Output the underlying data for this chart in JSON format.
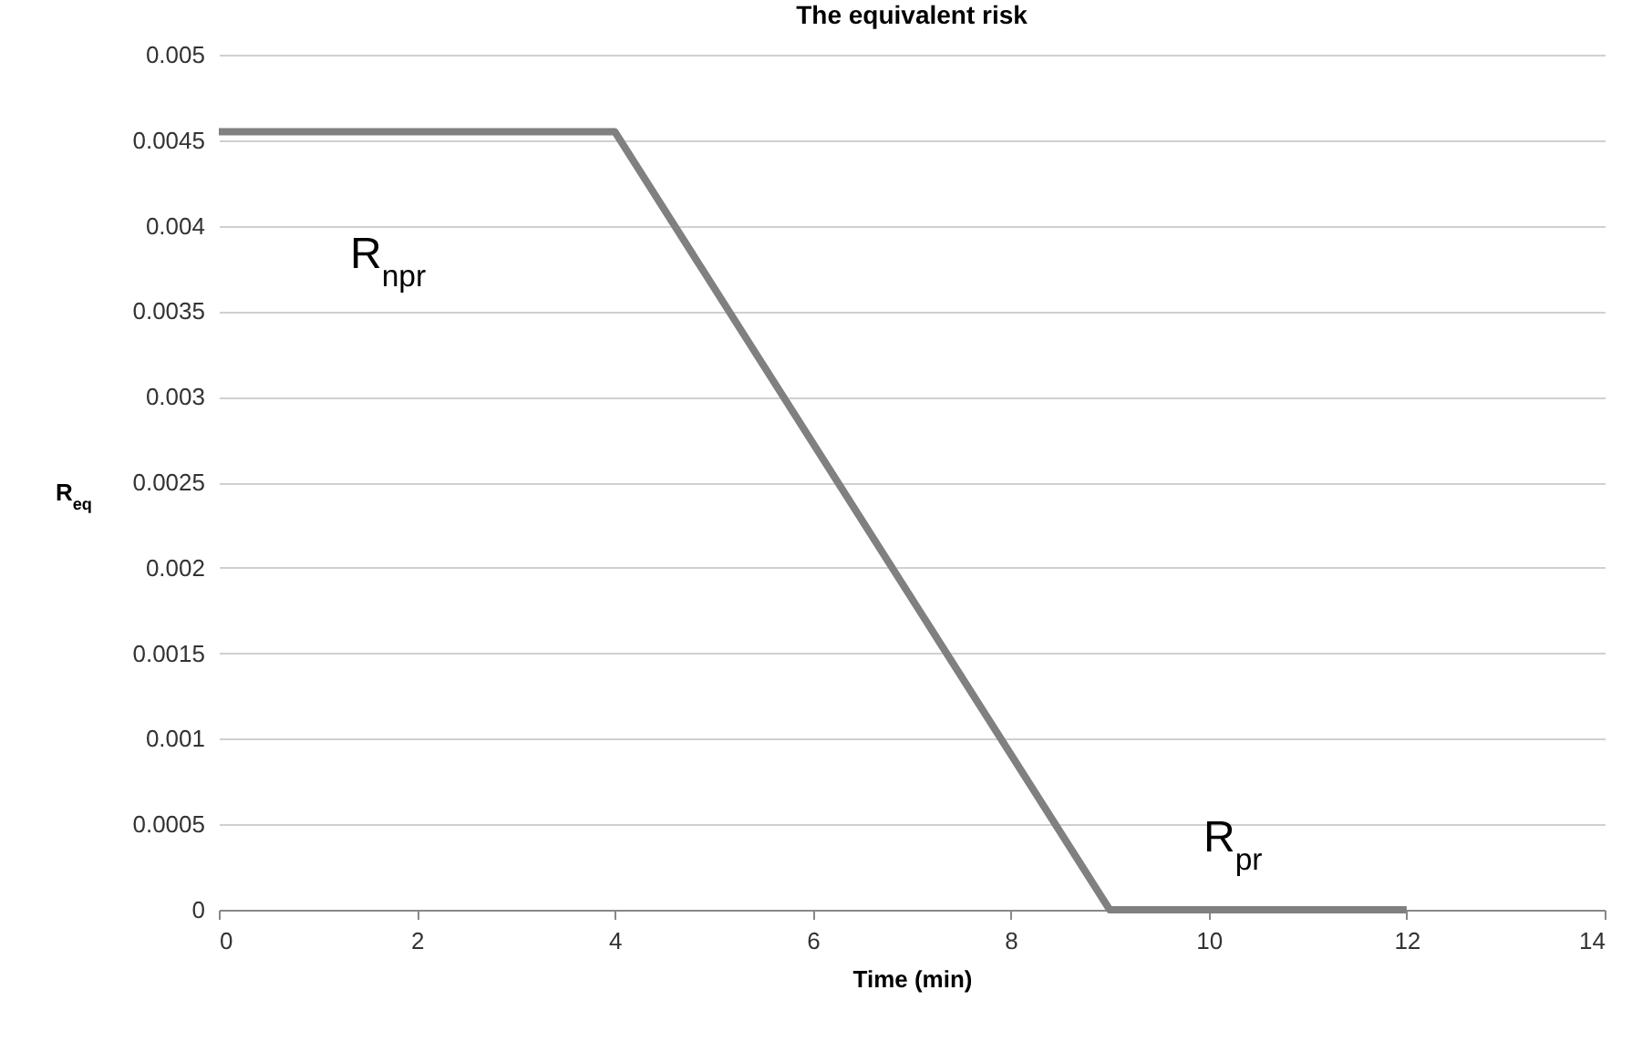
{
  "chart_data": {
    "type": "line",
    "title": "The equivalent risk",
    "xlabel": "Time (min)",
    "ylabel": "R$_{eq}$",
    "x": [
      0,
      4,
      9,
      12
    ],
    "series": [
      {
        "color": "#808080",
        "values": [
          0.00455,
          0.00455,
          0,
          0
        ]
      }
    ],
    "xlim": [
      0,
      14
    ],
    "xticks": [
      0,
      2,
      4,
      6,
      8,
      10,
      12,
      14
    ],
    "ylim": [
      0,
      0.005
    ],
    "yticks": [
      0,
      0.0005,
      0.001,
      0.0015,
      0.002,
      0.0025,
      0.003,
      0.0035,
      0.004,
      0.0045,
      0.005
    ],
    "grid": "y",
    "marker": "none",
    "line_style": "solid",
    "annotations": [
      "R$_{npr}$",
      "R$_{pr}$"
    ]
  }
}
